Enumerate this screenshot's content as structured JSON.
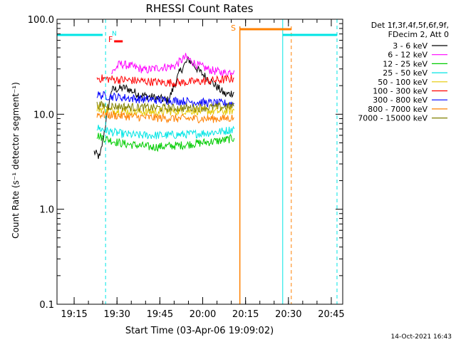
{
  "chart_data": {
    "type": "line",
    "title": "RHESSI Count Rates",
    "xlabel": "Start Time (03-Apr-06 19:09:02)",
    "ylabel": "Count Rate (s⁻¹ detector segment⁻¹)",
    "yscale": "log",
    "ylim": [
      0.1,
      100.0
    ],
    "xlim": [
      "19:09",
      "20:49"
    ],
    "yticks": [
      "0.1",
      "1.0",
      "10.0",
      "100.0"
    ],
    "xticks": [
      "19:15",
      "19:30",
      "19:45",
      "20:00",
      "20:15",
      "20:30",
      "20:45"
    ],
    "legend_title": [
      "Det 1f,3f,4f,5f,6f,9f,",
      "FDecim 2, Att 0"
    ],
    "legend_position": "right",
    "series": [
      {
        "name": "3 - 6 keV",
        "color": "#000000",
        "x": [
          "19:22",
          "19:24",
          "19:28",
          "19:33",
          "19:38",
          "19:43",
          "19:48",
          "19:52",
          "19:55",
          "19:59",
          "20:03",
          "20:08",
          "20:11"
        ],
        "values": [
          4.0,
          3.5,
          18,
          19,
          16,
          15,
          14,
          28,
          38,
          28,
          22,
          16,
          17
        ]
      },
      {
        "name": "6 - 12 keV",
        "color": "#ff00ff",
        "x": [
          "19:28",
          "19:31",
          "19:35",
          "19:40",
          "19:45",
          "19:50",
          "19:54",
          "19:58",
          "20:03",
          "20:08",
          "20:11"
        ],
        "values": [
          27,
          34,
          32,
          29,
          31,
          32,
          40,
          33,
          29,
          27,
          29
        ]
      },
      {
        "name": "12 - 25 keV",
        "color": "#00cc00",
        "x": [
          "19:23",
          "19:27",
          "19:32",
          "19:37",
          "19:42",
          "19:47",
          "19:52",
          "19:57",
          "20:02",
          "20:07",
          "20:11"
        ],
        "values": [
          6.0,
          5.4,
          4.9,
          4.7,
          4.5,
          4.6,
          4.7,
          4.9,
          5.1,
          5.3,
          5.6
        ]
      },
      {
        "name": "25 - 50 keV",
        "color": "#00e5e5",
        "x": [
          "19:23",
          "19:27",
          "19:32",
          "19:37",
          "19:42",
          "19:47",
          "19:52",
          "19:57",
          "20:02",
          "20:07",
          "20:11"
        ],
        "values": [
          7.2,
          6.6,
          6.2,
          6.0,
          6.0,
          6.0,
          6.1,
          6.2,
          6.4,
          6.6,
          7.0
        ]
      },
      {
        "name": "50 - 100 keV",
        "color": "#e5c800",
        "x": [
          "19:23",
          "19:27",
          "19:32",
          "19:37",
          "19:42",
          "19:47",
          "19:52",
          "19:57",
          "20:02",
          "20:07",
          "20:11"
        ],
        "values": [
          11.5,
          11.0,
          10.8,
          10.6,
          10.6,
          10.7,
          10.8,
          10.9,
          10.8,
          10.7,
          11.0
        ]
      },
      {
        "name": "100 - 300 keV",
        "color": "#ff0000",
        "x": [
          "19:23",
          "19:27",
          "19:32",
          "19:37",
          "19:42",
          "19:47",
          "19:52",
          "19:57",
          "20:02",
          "20:07",
          "20:11"
        ],
        "values": [
          24,
          23.5,
          23,
          22.5,
          22,
          21.5,
          21.5,
          22,
          22.5,
          23,
          24
        ]
      },
      {
        "name": "300 - 800 keV",
        "color": "#0000ff",
        "x": [
          "19:23",
          "19:27",
          "19:32",
          "19:37",
          "19:42",
          "19:47",
          "19:52",
          "19:57",
          "20:02",
          "20:07",
          "20:11"
        ],
        "values": [
          16,
          15.5,
          15,
          14.5,
          14.2,
          14.0,
          13.8,
          13.5,
          13.2,
          13.0,
          13.0
        ]
      },
      {
        "name": "800 - 7000 keV",
        "color": "#ff8000",
        "x": [
          "19:23",
          "19:27",
          "19:32",
          "19:37",
          "19:42",
          "19:47",
          "19:52",
          "19:57",
          "20:02",
          "20:07",
          "20:11"
        ],
        "values": [
          10.0,
          9.8,
          9.6,
          9.4,
          9.2,
          9.1,
          9.0,
          9.0,
          9.0,
          9.0,
          9.2
        ]
      },
      {
        "name": "7000 - 15000 keV",
        "color": "#808000",
        "x": [
          "19:23",
          "19:27",
          "19:32",
          "19:37",
          "19:42",
          "19:47",
          "19:52",
          "19:57",
          "20:02",
          "20:07",
          "20:11"
        ],
        "values": [
          12.5,
          12.2,
          12.0,
          11.8,
          11.7,
          11.6,
          11.6,
          11.7,
          11.8,
          11.9,
          12.2
        ]
      }
    ],
    "annotations": [
      {
        "label": "N",
        "color": "#00e5e5",
        "x": "19:27"
      },
      {
        "label": "F",
        "color": "#ff0000",
        "x": "19:27"
      },
      {
        "label": "S",
        "color": "#ff8000",
        "x": "20:13"
      }
    ],
    "timestamp": "14-Oct-2021 16:43"
  }
}
